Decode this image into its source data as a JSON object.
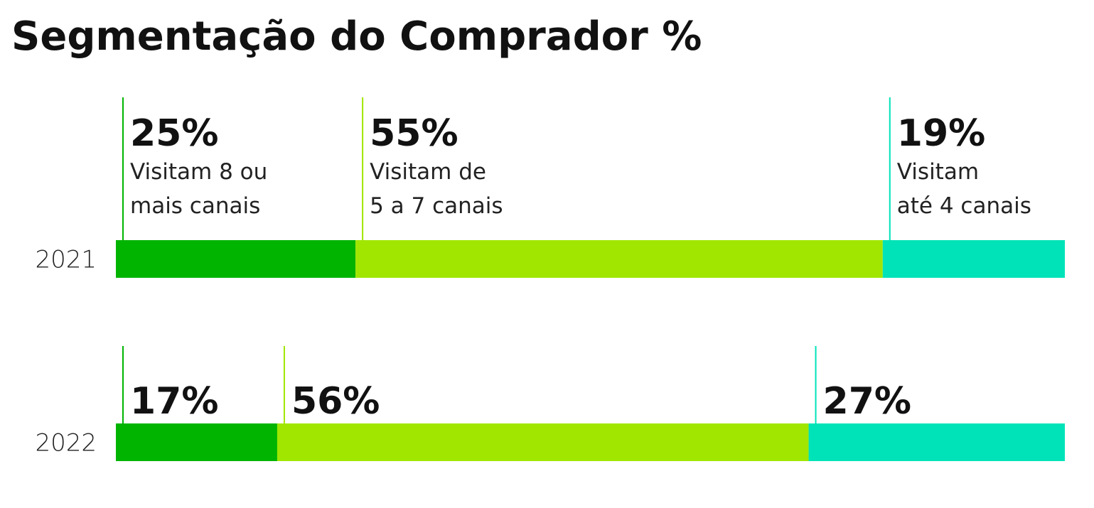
{
  "chart_data": {
    "type": "stacked-bar-horizontal",
    "title": "Segmentação do Comprador %",
    "categories": [
      "2021",
      "2022"
    ],
    "series": [
      {
        "name": "Visitam 8 ou\nmais canais",
        "color": "#00b400",
        "values": [
          25,
          17
        ],
        "value_labels": [
          "25%",
          "17%"
        ]
      },
      {
        "name": "Visitam de\n5 a 7 canais",
        "color": "#a0e600",
        "values": [
          55,
          56
        ],
        "value_labels": [
          "55%",
          "56%"
        ]
      },
      {
        "name": "Visitam\naté 4 canais",
        "color": "#00e3b8",
        "values": [
          19,
          27
        ],
        "value_labels": [
          "19%",
          "27%"
        ]
      }
    ]
  }
}
